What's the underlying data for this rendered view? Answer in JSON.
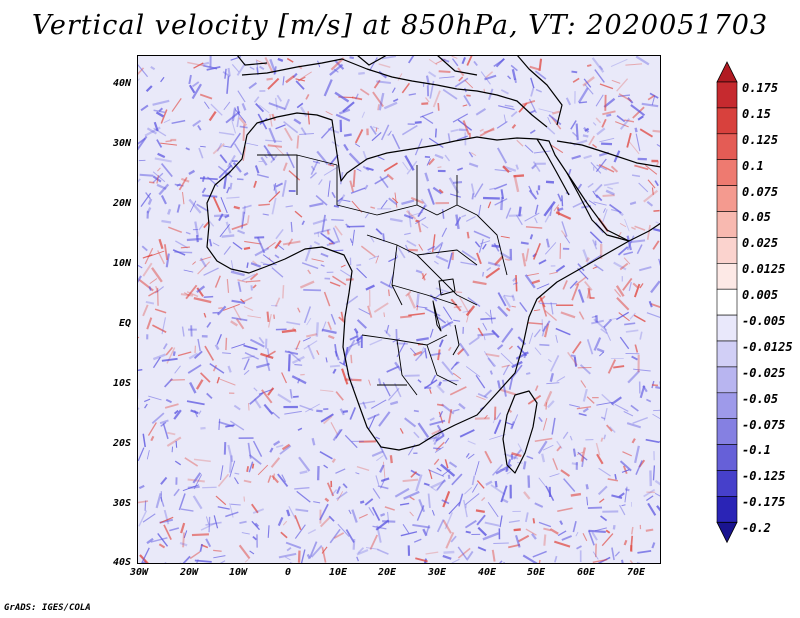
{
  "title": "Vertical velocity [m/s] at 850hPa, VT: 2020051703",
  "credit": "GrADS: IGES/COLA",
  "map": {
    "region": "Africa",
    "lat_labels": [
      "40N",
      "30N",
      "20N",
      "10N",
      "EQ",
      "10S",
      "20S",
      "30S",
      "40S"
    ],
    "lon_labels": [
      "30W",
      "20W",
      "10W",
      "0",
      "10E",
      "20E",
      "30E",
      "40E",
      "50E",
      "60E",
      "70E"
    ]
  },
  "colorbar": {
    "labels": [
      "0.175",
      "0.15",
      "0.125",
      "0.1",
      "0.075",
      "0.05",
      "0.025",
      "0.0125",
      "0.005",
      "-0.005",
      "-0.0125",
      "-0.025",
      "-0.05",
      "-0.075",
      "-0.1",
      "-0.125",
      "-0.175",
      "-0.2"
    ],
    "colors": [
      "#b11a22",
      "#c62a2f",
      "#d8413d",
      "#e45c55",
      "#ee7a70",
      "#f49a8f",
      "#f8b9b0",
      "#fbd3ce",
      "#fde9e6",
      "#ffffff",
      "#e9e8fb",
      "#d1cff6",
      "#b8b5f0",
      "#9e9aea",
      "#8580e2",
      "#6660d8",
      "#4640cb",
      "#2a24b6",
      "#1a1490"
    ]
  },
  "field_colors": {
    "pos": "#e0443c",
    "neg": "#5a54e0",
    "land_line": "#000000"
  }
}
